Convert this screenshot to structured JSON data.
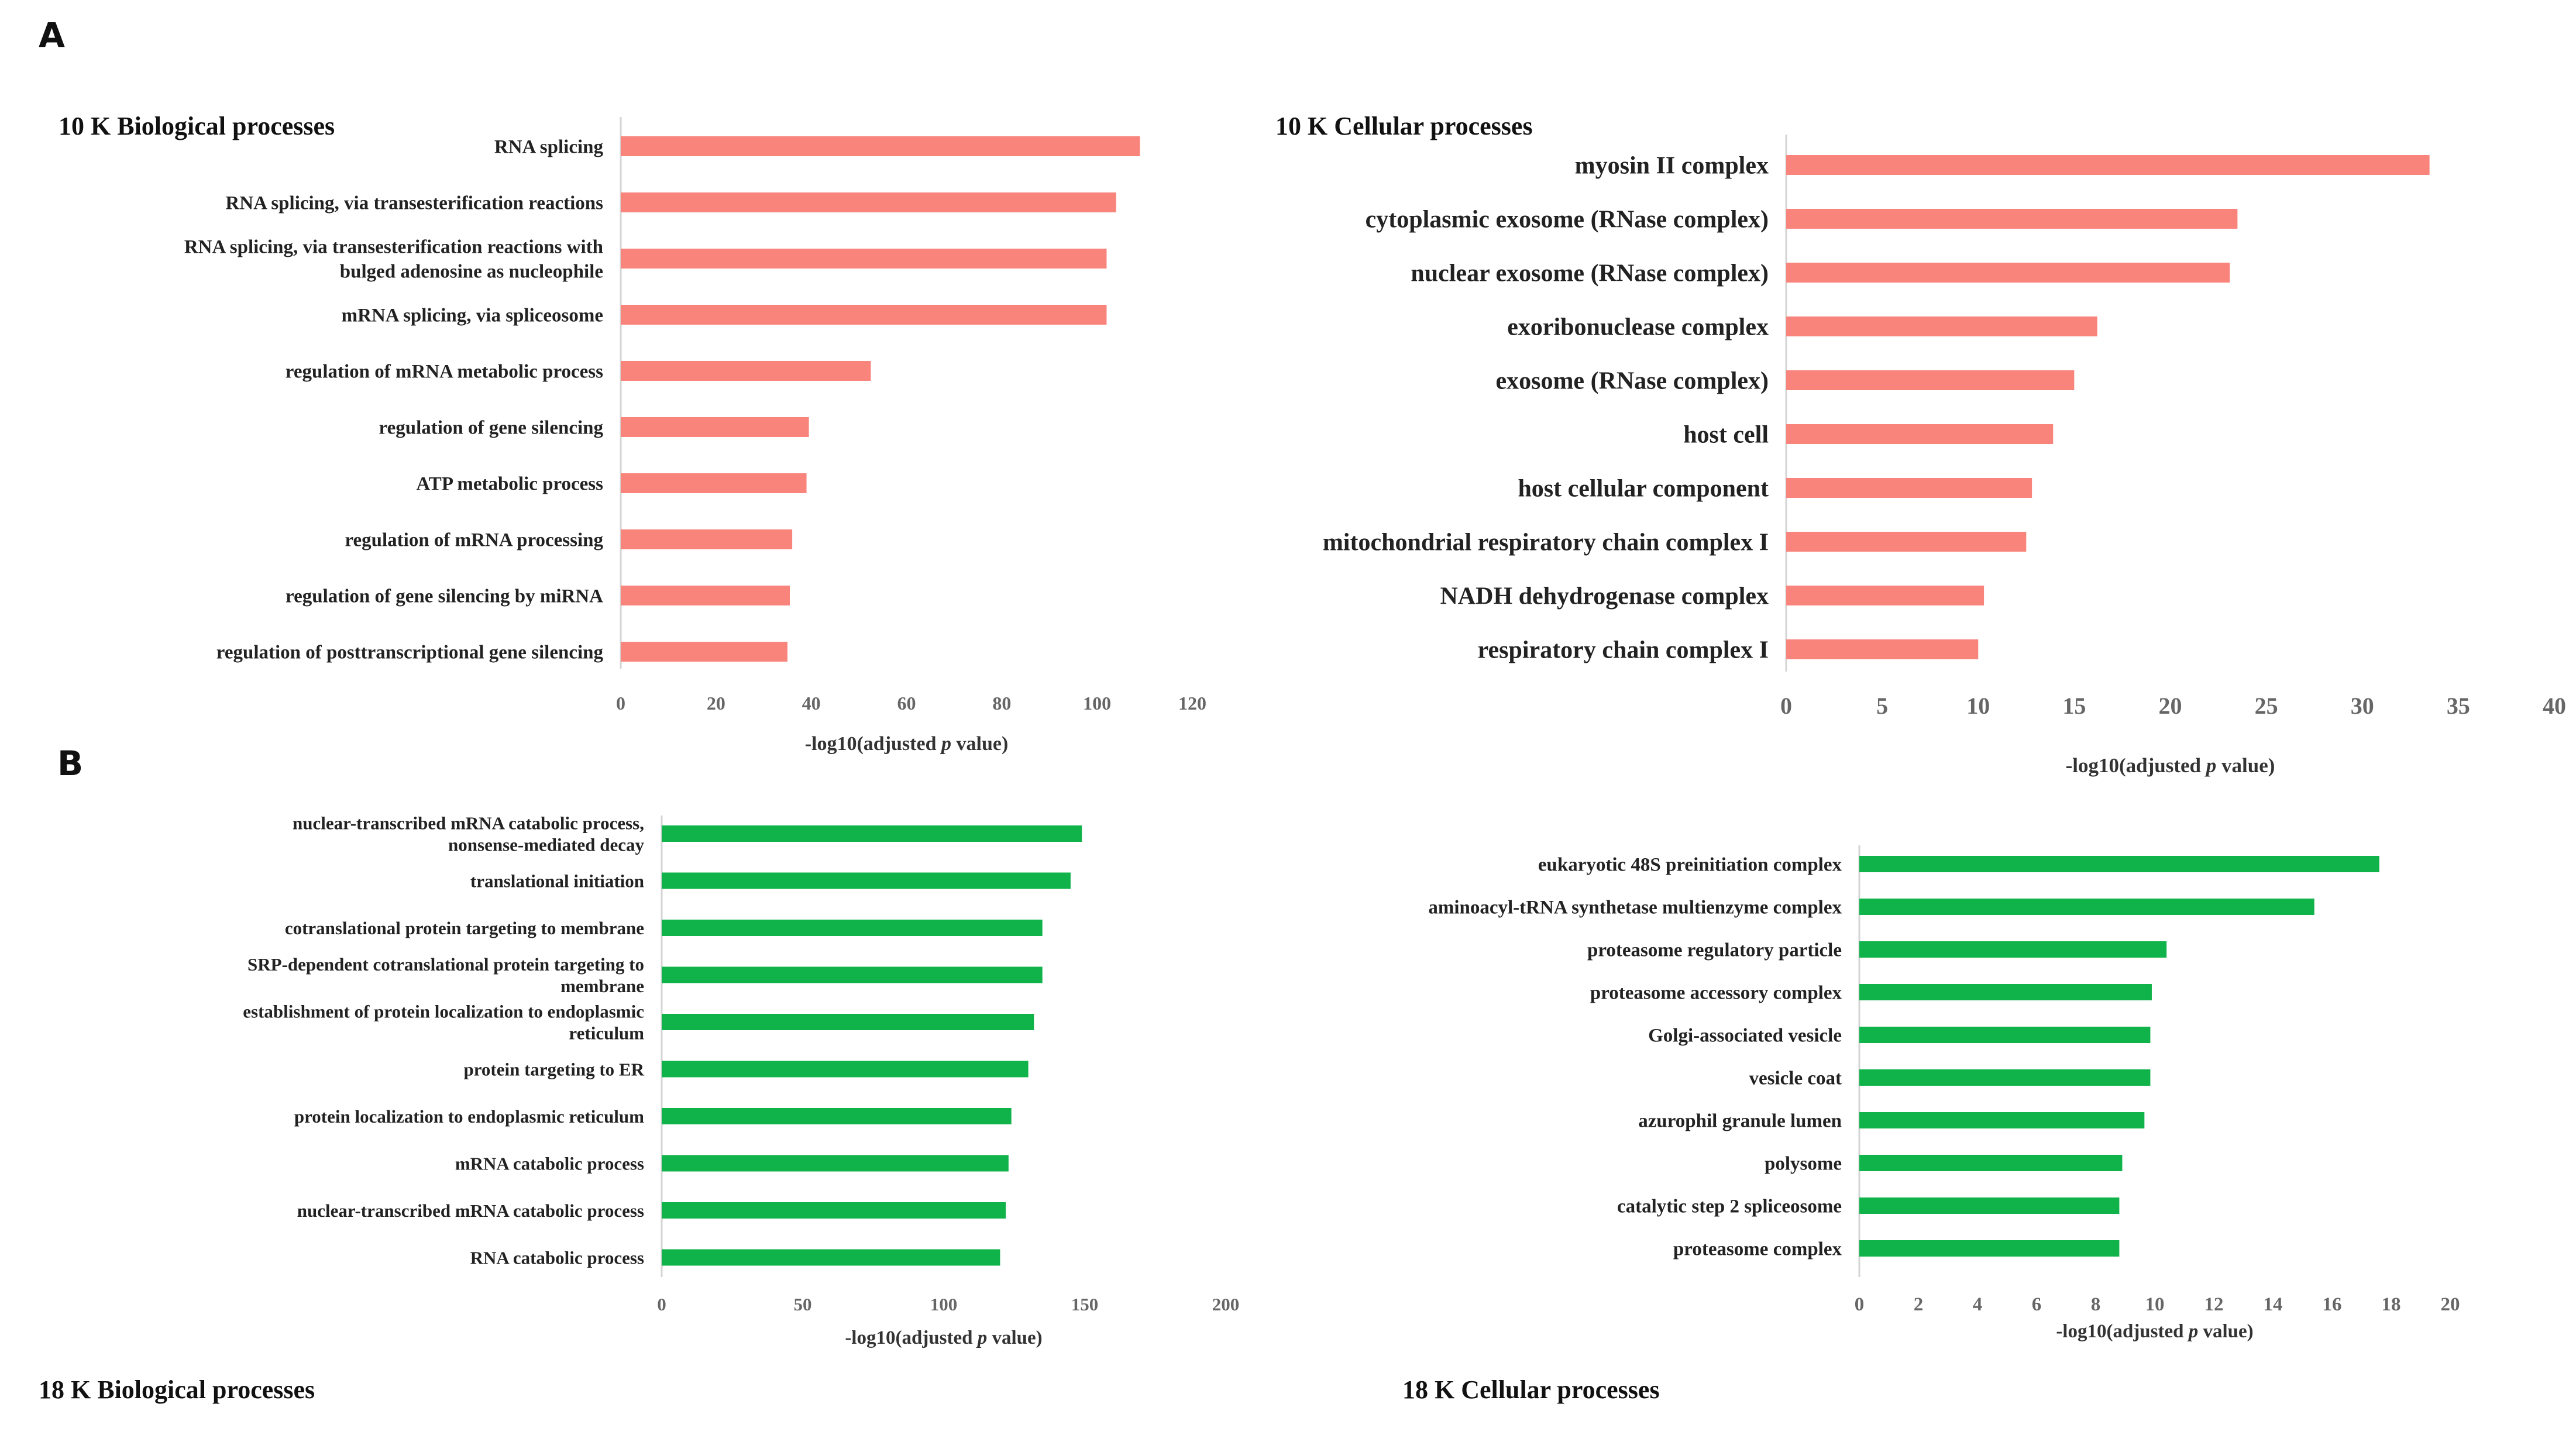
{
  "panels": [
    {
      "label": "A"
    },
    {
      "label": "B"
    }
  ],
  "chart_data": [
    {
      "type": "bar",
      "orientation": "horizontal",
      "title": "10 K Biological processes",
      "color": "#f8847c",
      "categories": [
        "RNA splicing",
        "RNA splicing, via transesterification reactions",
        "RNA splicing, via transesterification reactions with\nbulged adenosine as nucleophile",
        "mRNA splicing, via spliceosome",
        "regulation of mRNA metabolic process",
        "regulation of gene silencing",
        "ATP metabolic process",
        "regulation of mRNA processing",
        "regulation of gene silencing by miRNA",
        "regulation of posttranscriptional gene silencing"
      ],
      "values": [
        109,
        104,
        102,
        102,
        52.5,
        39.5,
        39,
        36,
        35.5,
        35
      ],
      "xlim": [
        0,
        120
      ],
      "xticks": [
        0,
        20,
        40,
        60,
        80,
        100,
        120
      ],
      "xlabel": "-log10(adjusted p value)",
      "xlabel_parts": [
        "-log10(adjusted ",
        "p",
        " value)"
      ],
      "grid": false
    },
    {
      "type": "bar",
      "orientation": "horizontal",
      "title": "10 K Cellular processes",
      "color": "#f8847c",
      "categories": [
        "myosin II complex",
        "cytoplasmic exosome (RNase complex)",
        "nuclear exosome (RNase complex)",
        "exoribonuclease complex",
        "exosome (RNase complex)",
        "host cell",
        "host cellular component",
        "mitochondrial respiratory chain complex I",
        "NADH dehydrogenase complex",
        "respiratory chain complex I"
      ],
      "values": [
        33.5,
        23.5,
        23.1,
        16.2,
        15,
        13.9,
        12.8,
        12.5,
        10.3,
        10
      ],
      "xlim": [
        0,
        40
      ],
      "xticks": [
        0,
        5,
        10,
        15,
        20,
        25,
        30,
        35,
        40
      ],
      "xlabel": "-log10(adjusted p value)",
      "xlabel_parts": [
        "-log10(adjusted ",
        "p",
        " value)"
      ],
      "grid": false
    },
    {
      "type": "bar",
      "orientation": "horizontal",
      "title": "18 K Biological processes",
      "color": "#10b34a",
      "categories": [
        "nuclear-transcribed mRNA catabolic process,\nnonsense-mediated decay",
        "translational initiation",
        "cotranslational protein targeting to membrane",
        "SRP-dependent cotranslational protein targeting to\nmembrane",
        "establishment of protein localization to endoplasmic\nreticulum",
        "protein targeting to ER",
        "protein localization to endoplasmic reticulum",
        "mRNA catabolic process",
        "nuclear-transcribed mRNA catabolic process",
        "RNA catabolic process"
      ],
      "values": [
        149,
        145,
        135,
        135,
        132,
        130,
        124,
        123,
        122,
        120
      ],
      "xlim": [
        0,
        200
      ],
      "xticks": [
        0,
        50,
        100,
        150,
        200
      ],
      "xlabel": "-log10(adjusted p value)",
      "xlabel_parts": [
        "-log10(adjusted ",
        "p",
        " value)"
      ],
      "grid": false
    },
    {
      "type": "bar",
      "orientation": "horizontal",
      "title": "18 K Cellular processes",
      "color": "#10b34a",
      "categories": [
        "eukaryotic 48S preinitiation complex",
        "aminoacyl-tRNA synthetase multienzyme complex",
        "proteasome regulatory particle",
        "proteasome accessory complex",
        "Golgi-associated vesicle",
        "vesicle coat",
        "azurophil granule lumen",
        "polysome",
        "catalytic step 2 spliceosome",
        "proteasome complex"
      ],
      "values": [
        17.6,
        15.4,
        10.4,
        9.9,
        9.85,
        9.85,
        9.65,
        8.9,
        8.8,
        8.8
      ],
      "xlim": [
        0,
        20
      ],
      "xticks": [
        0,
        2,
        4,
        6,
        8,
        10,
        12,
        14,
        16,
        18,
        20
      ],
      "xlabel": "-log10(adjusted p value)",
      "xlabel_parts": [
        "-log10(adjusted ",
        "p",
        " value)"
      ],
      "grid": false
    }
  ]
}
